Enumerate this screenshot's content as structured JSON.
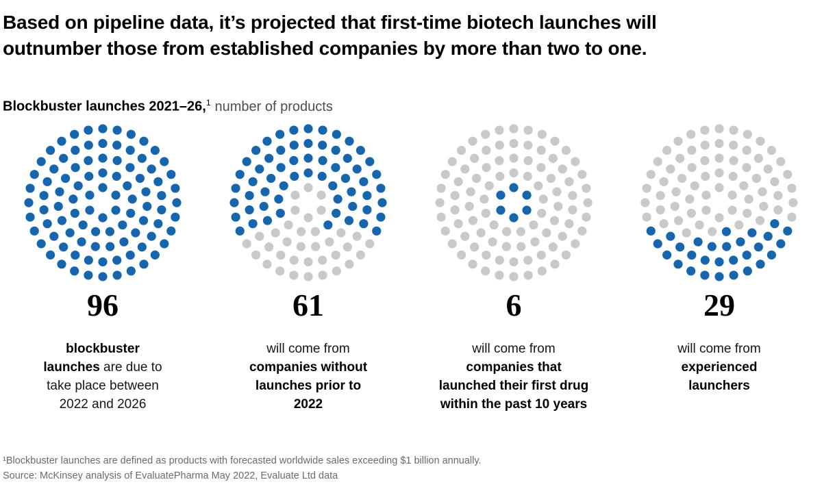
{
  "colors": {
    "dot_blue": "#1766ad",
    "dot_gray": "#c9c9c9",
    "title_text": "#000000",
    "subtitle_unit_gray": "#4d4d4d",
    "footnote_gray": "#6b6b6b"
  },
  "header": {
    "title_lines": [
      "Based on pipeline data, it’s projected that first-time biotech launches will",
      "outnumber those from established companies by more than two to one."
    ]
  },
  "subtitle": {
    "bold": "Blockbuster launches 2021–26,",
    "footnote_marker": "1",
    "rest": "number of products"
  },
  "chart_data": {
    "type": "pictogram_dot_circles",
    "title": "Blockbuster launches 2021–26, number of products",
    "dots_per_circle": 96,
    "dot_radius": 6.6,
    "rings": [
      {
        "count": 6,
        "radius": 22
      },
      {
        "count": 13,
        "radius": 43.5
      },
      {
        "count": 19,
        "radius": 65
      },
      {
        "count": 26,
        "radius": 86.5
      },
      {
        "count": 32,
        "radius": 108
      }
    ],
    "groups": [
      {
        "value": 96,
        "highlight_anchor": "top",
        "ring_highlight_counts": [
          6,
          13,
          19,
          26,
          32
        ],
        "label_plain": "blockbuster launches are due to take place between 2022 and 2026",
        "label_lines": [
          [
            {
              "text": "blockbuster",
              "bold": true
            }
          ],
          [
            {
              "text": "launches",
              "bold": true
            },
            {
              "text": " are due to",
              "bold": false
            }
          ],
          [
            {
              "text": "take place between",
              "bold": false
            }
          ],
          [
            {
              "text": "2022 and 2026",
              "bold": false
            }
          ]
        ]
      },
      {
        "value": 61,
        "highlight_anchor": "top",
        "ring_highlight_counts": [
          0,
          10,
          13,
          17,
          21
        ],
        "label_plain": "will come from companies without launches prior to 2022",
        "label_lines": [
          [
            {
              "text": "will come from",
              "bold": false
            }
          ],
          [
            {
              "text": "companies without",
              "bold": true
            }
          ],
          [
            {
              "text": "launches prior to",
              "bold": true
            }
          ],
          [
            {
              "text": "2022",
              "bold": true
            }
          ]
        ]
      },
      {
        "value": 6,
        "highlight_anchor": "top",
        "ring_highlight_counts": [
          6,
          0,
          0,
          0,
          0
        ],
        "label_plain": "will come from companies that launched their first drug within the past 10 years",
        "label_lines": [
          [
            {
              "text": "will come from",
              "bold": false
            }
          ],
          [
            {
              "text": "companies that",
              "bold": true
            }
          ],
          [
            {
              "text": "launched their first drug",
              "bold": true
            }
          ],
          [
            {
              "text": "within the past 10 years",
              "bold": true
            }
          ]
        ]
      },
      {
        "value": 29,
        "highlight_anchor": "bottom",
        "ring_highlight_counts": [
          0,
          1,
          5,
          10,
          13
        ],
        "label_plain": "will come from experienced launchers",
        "label_lines": [
          [
            {
              "text": "will come from",
              "bold": false
            }
          ],
          [
            {
              "text": "experienced",
              "bold": true
            }
          ],
          [
            {
              "text": "launchers",
              "bold": true
            }
          ]
        ]
      }
    ]
  },
  "footnotes": {
    "definition": "¹Blockbuster launches are defined as products with forecasted worldwide sales exceeding $1 billion annually.",
    "source": "Source: McKinsey analysis of EvaluatePharma May 2022, Evaluate Ltd data"
  }
}
